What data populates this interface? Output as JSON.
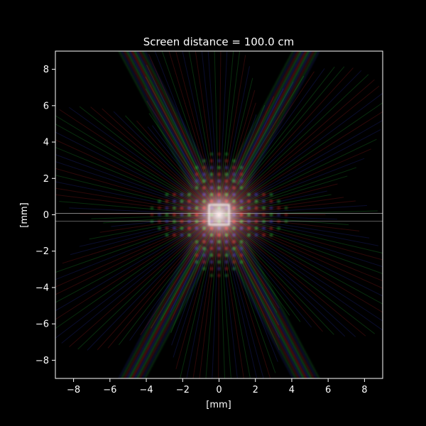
{
  "title": "Screen distance = 100.0 cm",
  "xlabel": "[mm]",
  "ylabel": "[mm]",
  "x_ticks": [
    "−8",
    "−6",
    "−4",
    "−2",
    "0",
    "2",
    "4",
    "6",
    "8"
  ],
  "y_ticks": [
    "8",
    "6",
    "4",
    "2",
    "0",
    "−2",
    "−4",
    "−6",
    "−8"
  ],
  "x_range_mm": [
    -9,
    9
  ],
  "y_range_mm": [
    -9,
    9
  ],
  "colors": {
    "background": "#000000",
    "text": "#ffffff",
    "red": "#ff2a2a",
    "green": "#2aff4a",
    "blue": "#3a4aff"
  }
}
